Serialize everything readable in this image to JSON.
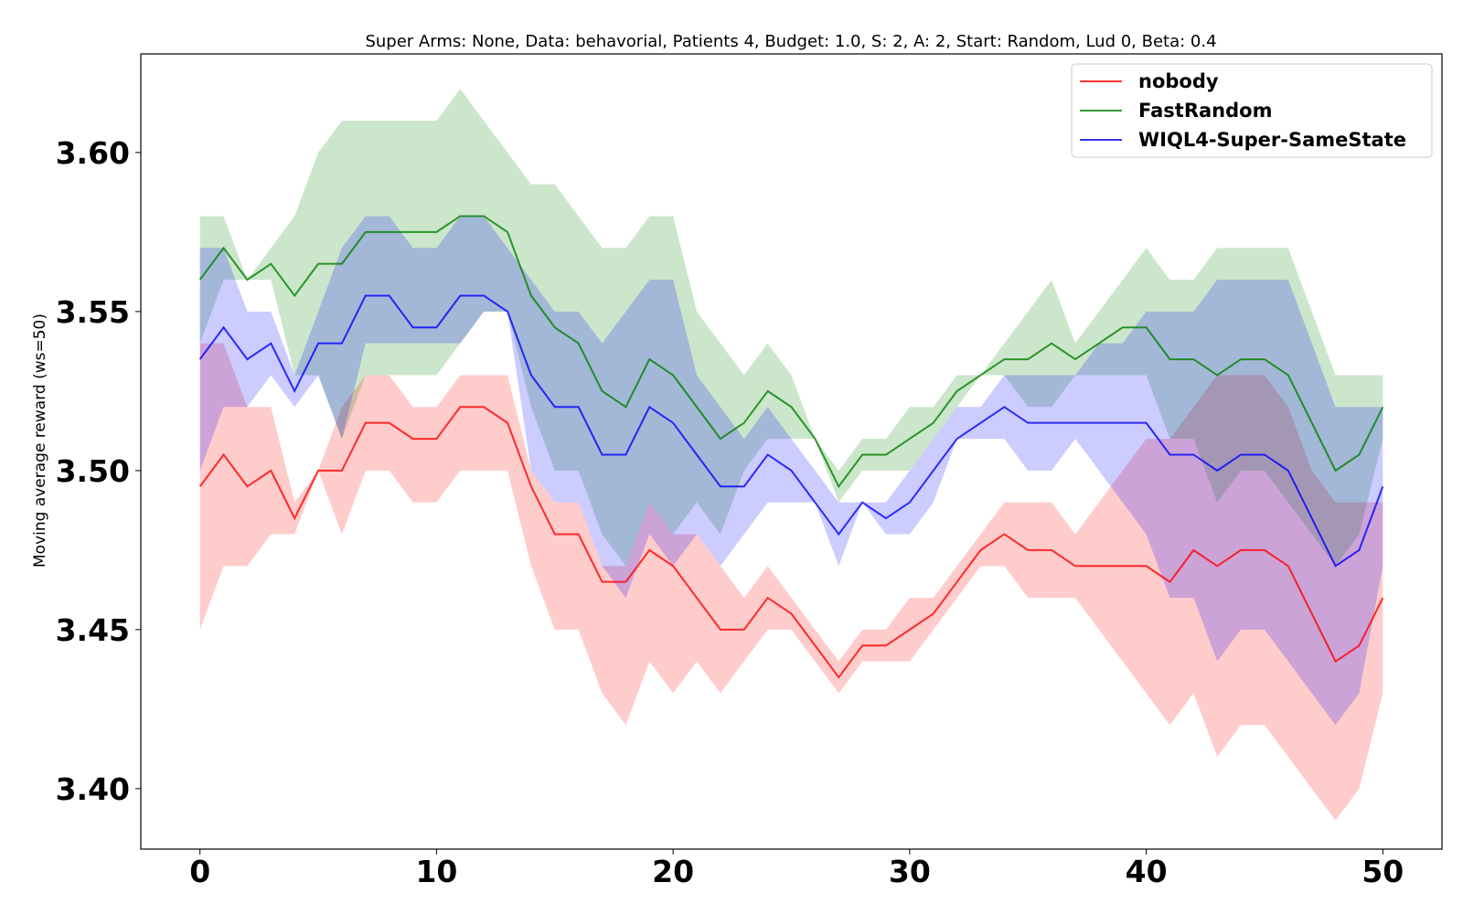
{
  "chart_data": {
    "type": "line",
    "title": "Super Arms: None, Data: behavorial, Patients 4, Budget: 1.0, S: 2, A: 2, Start: Random, Lud 0, Beta: 0.4",
    "xlabel": "",
    "ylabel": "Moving average reward (ws=50)",
    "xlim": [
      -2.5,
      52.5
    ],
    "ylim": [
      3.381,
      3.631
    ],
    "xticks": [
      0,
      10,
      20,
      30,
      40,
      50
    ],
    "yticks": [
      3.4,
      3.45,
      3.5,
      3.55,
      3.6
    ],
    "xtick_labels": [
      "0",
      "10",
      "20",
      "30",
      "40",
      "50"
    ],
    "ytick_labels": [
      "3.40",
      "3.45",
      "3.50",
      "3.55",
      "3.60"
    ],
    "grid": false,
    "legend_position": "top-right",
    "x": [
      0,
      1,
      2,
      3,
      4,
      5,
      6,
      7,
      8,
      9,
      10,
      11,
      12,
      13,
      14,
      15,
      16,
      17,
      18,
      19,
      20,
      21,
      22,
      23,
      24,
      25,
      26,
      27,
      28,
      29,
      30,
      31,
      32,
      33,
      34,
      35,
      36,
      37,
      38,
      39,
      40,
      41,
      42,
      43,
      44,
      45,
      46,
      47,
      48,
      49,
      50
    ],
    "series": [
      {
        "name": "nobody",
        "color": "#ff0000",
        "values": [
          3.495,
          3.505,
          3.495,
          3.5,
          3.485,
          3.5,
          3.5,
          3.515,
          3.515,
          3.51,
          3.51,
          3.52,
          3.52,
          3.515,
          3.495,
          3.48,
          3.48,
          3.465,
          3.465,
          3.475,
          3.47,
          3.46,
          3.45,
          3.45,
          3.46,
          3.455,
          3.445,
          3.435,
          3.445,
          3.445,
          3.45,
          3.455,
          3.465,
          3.475,
          3.48,
          3.475,
          3.475,
          3.47,
          3.47,
          3.47,
          3.47,
          3.465,
          3.475,
          3.47,
          3.475,
          3.475,
          3.47,
          3.455,
          3.44,
          3.445,
          3.46
        ],
        "upper": [
          3.54,
          3.54,
          3.52,
          3.52,
          3.49,
          3.5,
          3.52,
          3.53,
          3.53,
          3.52,
          3.52,
          3.53,
          3.53,
          3.53,
          3.5,
          3.49,
          3.49,
          3.47,
          3.47,
          3.49,
          3.48,
          3.48,
          3.47,
          3.46,
          3.47,
          3.46,
          3.45,
          3.44,
          3.45,
          3.45,
          3.46,
          3.46,
          3.47,
          3.48,
          3.49,
          3.49,
          3.49,
          3.48,
          3.49,
          3.5,
          3.51,
          3.51,
          3.52,
          3.53,
          3.53,
          3.53,
          3.52,
          3.5,
          3.49,
          3.49,
          3.49
        ],
        "lower": [
          3.45,
          3.47,
          3.47,
          3.48,
          3.48,
          3.5,
          3.48,
          3.5,
          3.5,
          3.49,
          3.49,
          3.5,
          3.5,
          3.5,
          3.47,
          3.45,
          3.45,
          3.43,
          3.42,
          3.44,
          3.43,
          3.44,
          3.43,
          3.44,
          3.45,
          3.45,
          3.44,
          3.43,
          3.44,
          3.44,
          3.44,
          3.45,
          3.46,
          3.47,
          3.47,
          3.46,
          3.46,
          3.46,
          3.45,
          3.44,
          3.43,
          3.42,
          3.43,
          3.41,
          3.42,
          3.42,
          3.41,
          3.4,
          3.39,
          3.4,
          3.43
        ]
      },
      {
        "name": "FastRandom",
        "color": "#008000",
        "values": [
          3.56,
          3.57,
          3.56,
          3.565,
          3.555,
          3.565,
          3.565,
          3.575,
          3.575,
          3.575,
          3.575,
          3.58,
          3.58,
          3.575,
          3.555,
          3.545,
          3.54,
          3.525,
          3.52,
          3.535,
          3.53,
          3.52,
          3.51,
          3.515,
          3.525,
          3.52,
          3.51,
          3.495,
          3.505,
          3.505,
          3.51,
          3.515,
          3.525,
          3.53,
          3.535,
          3.535,
          3.54,
          3.535,
          3.54,
          3.545,
          3.545,
          3.535,
          3.535,
          3.53,
          3.535,
          3.535,
          3.53,
          3.515,
          3.5,
          3.505,
          3.52
        ],
        "upper": [
          3.58,
          3.58,
          3.56,
          3.57,
          3.58,
          3.6,
          3.61,
          3.61,
          3.61,
          3.61,
          3.61,
          3.62,
          3.61,
          3.6,
          3.59,
          3.59,
          3.58,
          3.57,
          3.57,
          3.58,
          3.58,
          3.55,
          3.54,
          3.53,
          3.54,
          3.53,
          3.51,
          3.5,
          3.51,
          3.51,
          3.52,
          3.52,
          3.53,
          3.53,
          3.54,
          3.55,
          3.56,
          3.54,
          3.55,
          3.56,
          3.57,
          3.56,
          3.56,
          3.57,
          3.57,
          3.57,
          3.57,
          3.55,
          3.53,
          3.53,
          3.53
        ],
        "lower": [
          3.54,
          3.56,
          3.56,
          3.56,
          3.53,
          3.53,
          3.51,
          3.53,
          3.53,
          3.53,
          3.53,
          3.54,
          3.55,
          3.55,
          3.52,
          3.5,
          3.5,
          3.48,
          3.47,
          3.49,
          3.48,
          3.49,
          3.48,
          3.5,
          3.51,
          3.51,
          3.51,
          3.49,
          3.5,
          3.5,
          3.5,
          3.51,
          3.52,
          3.53,
          3.53,
          3.52,
          3.52,
          3.53,
          3.53,
          3.53,
          3.53,
          3.51,
          3.51,
          3.49,
          3.5,
          3.5,
          3.49,
          3.48,
          3.47,
          3.48,
          3.51
        ]
      },
      {
        "name": "WIQL4-Super-SameState",
        "color": "#0000ff",
        "values": [
          3.535,
          3.545,
          3.535,
          3.54,
          3.525,
          3.54,
          3.54,
          3.555,
          3.555,
          3.545,
          3.545,
          3.555,
          3.555,
          3.55,
          3.53,
          3.52,
          3.52,
          3.505,
          3.505,
          3.52,
          3.515,
          3.505,
          3.495,
          3.495,
          3.505,
          3.5,
          3.49,
          3.48,
          3.49,
          3.485,
          3.49,
          3.5,
          3.51,
          3.515,
          3.52,
          3.515,
          3.515,
          3.515,
          3.515,
          3.515,
          3.515,
          3.505,
          3.505,
          3.5,
          3.505,
          3.505,
          3.5,
          3.485,
          3.47,
          3.475,
          3.495
        ],
        "upper": [
          3.57,
          3.57,
          3.55,
          3.55,
          3.53,
          3.55,
          3.57,
          3.58,
          3.58,
          3.57,
          3.57,
          3.58,
          3.58,
          3.57,
          3.56,
          3.55,
          3.55,
          3.54,
          3.55,
          3.56,
          3.56,
          3.53,
          3.52,
          3.51,
          3.52,
          3.51,
          3.5,
          3.49,
          3.49,
          3.49,
          3.5,
          3.51,
          3.52,
          3.52,
          3.53,
          3.53,
          3.53,
          3.53,
          3.54,
          3.54,
          3.55,
          3.55,
          3.55,
          3.56,
          3.56,
          3.56,
          3.56,
          3.54,
          3.52,
          3.52,
          3.52
        ],
        "lower": [
          3.5,
          3.52,
          3.52,
          3.53,
          3.52,
          3.53,
          3.51,
          3.54,
          3.54,
          3.54,
          3.54,
          3.54,
          3.55,
          3.55,
          3.5,
          3.49,
          3.49,
          3.47,
          3.46,
          3.48,
          3.47,
          3.48,
          3.47,
          3.48,
          3.49,
          3.49,
          3.49,
          3.47,
          3.49,
          3.48,
          3.48,
          3.49,
          3.51,
          3.51,
          3.51,
          3.5,
          3.5,
          3.51,
          3.5,
          3.49,
          3.48,
          3.46,
          3.46,
          3.44,
          3.45,
          3.45,
          3.44,
          3.43,
          3.42,
          3.43,
          3.47
        ]
      }
    ]
  }
}
